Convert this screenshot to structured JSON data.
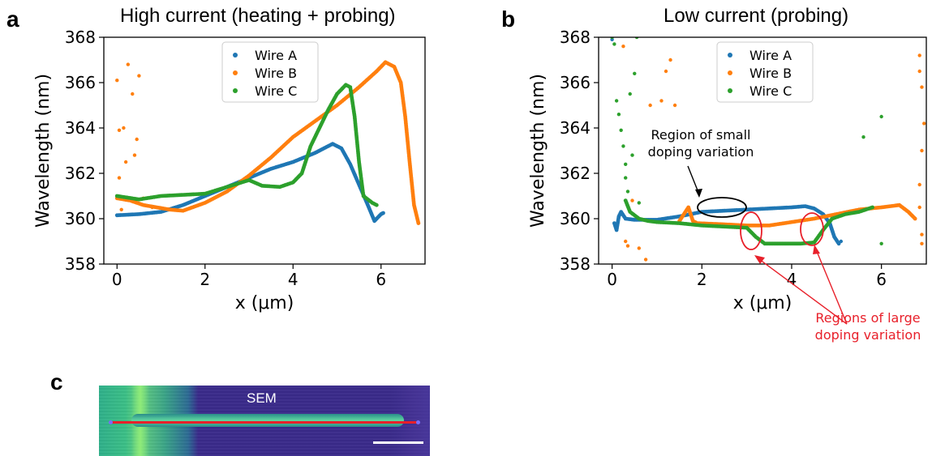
{
  "panels": {
    "a": {
      "letter": "a",
      "title": "High current (heating + probing)"
    },
    "b": {
      "letter": "b",
      "title": "Low current (probing)"
    },
    "c": {
      "letter": "c",
      "sem_label": "SEM"
    }
  },
  "annotations": {
    "small_doping": "Region of small\ndoping variation",
    "large_doping": "Regions of large\ndoping variation"
  },
  "colors": {
    "wire_a": "#1f77b4",
    "wire_b": "#ff7f0e",
    "wire_c": "#2ca02c",
    "annotation_red": "#e8202a"
  },
  "chart_data": [
    {
      "type": "scatter",
      "panel": "a",
      "title": "High current (heating + probing)",
      "xlabel": "x (μm)",
      "ylabel": "Wavelength (nm)",
      "xlim": [
        -0.3,
        7.0
      ],
      "ylim": [
        358,
        368
      ],
      "xticks": [
        0,
        2,
        4,
        6
      ],
      "yticks": [
        358,
        360,
        362,
        364,
        366,
        368
      ],
      "legend": "top-center",
      "grid": false,
      "series": [
        {
          "name": "Wire A",
          "color": "#1f77b4",
          "points": [
            [
              0.0,
              360.15
            ],
            [
              0.5,
              360.2
            ],
            [
              1.0,
              360.3
            ],
            [
              1.5,
              360.6
            ],
            [
              2.0,
              361.0
            ],
            [
              2.5,
              361.4
            ],
            [
              3.0,
              361.8
            ],
            [
              3.5,
              362.2
            ],
            [
              4.0,
              362.5
            ],
            [
              4.5,
              362.9
            ],
            [
              4.9,
              363.3
            ],
            [
              5.1,
              363.1
            ],
            [
              5.3,
              362.4
            ],
            [
              5.5,
              361.5
            ],
            [
              5.7,
              360.6
            ],
            [
              5.85,
              359.9
            ],
            [
              6.0,
              360.2
            ],
            [
              6.05,
              360.25
            ]
          ],
          "outliers": []
        },
        {
          "name": "Wire B",
          "color": "#ff7f0e",
          "points": [
            [
              0.0,
              360.9
            ],
            [
              0.3,
              360.8
            ],
            [
              0.6,
              360.6
            ],
            [
              0.9,
              360.5
            ],
            [
              1.2,
              360.4
            ],
            [
              1.5,
              360.35
            ],
            [
              2.0,
              360.7
            ],
            [
              2.5,
              361.2
            ],
            [
              3.0,
              361.9
            ],
            [
              3.5,
              362.7
            ],
            [
              4.0,
              363.6
            ],
            [
              4.5,
              364.3
            ],
            [
              5.0,
              365.0
            ],
            [
              5.5,
              365.8
            ],
            [
              5.9,
              366.5
            ],
            [
              6.1,
              366.9
            ],
            [
              6.3,
              366.7
            ],
            [
              6.45,
              366.0
            ],
            [
              6.55,
              364.5
            ],
            [
              6.65,
              362.5
            ],
            [
              6.75,
              360.6
            ],
            [
              6.85,
              359.8
            ]
          ],
          "outliers": [
            [
              0.0,
              366.1
            ],
            [
              0.05,
              363.9
            ],
            [
              0.05,
              361.8
            ],
            [
              0.1,
              360.4
            ],
            [
              0.15,
              364.0
            ],
            [
              0.2,
              362.5
            ],
            [
              0.25,
              366.8
            ],
            [
              0.3,
              360.9
            ],
            [
              0.35,
              365.5
            ],
            [
              0.4,
              362.8
            ],
            [
              0.45,
              363.5
            ],
            [
              0.5,
              366.3
            ],
            [
              0.6,
              360.9
            ],
            [
              0.8,
              360.5
            ]
          ]
        },
        {
          "name": "Wire C",
          "color": "#2ca02c",
          "points": [
            [
              0.0,
              361.0
            ],
            [
              0.5,
              360.85
            ],
            [
              1.0,
              361.0
            ],
            [
              1.5,
              361.05
            ],
            [
              2.0,
              361.1
            ],
            [
              2.5,
              361.4
            ],
            [
              3.0,
              361.7
            ],
            [
              3.3,
              361.45
            ],
            [
              3.7,
              361.4
            ],
            [
              4.0,
              361.6
            ],
            [
              4.2,
              362.0
            ],
            [
              4.4,
              363.2
            ],
            [
              4.6,
              364.0
            ],
            [
              4.8,
              364.8
            ],
            [
              5.0,
              365.5
            ],
            [
              5.2,
              365.9
            ],
            [
              5.3,
              365.8
            ],
            [
              5.4,
              364.5
            ],
            [
              5.5,
              362.5
            ],
            [
              5.6,
              361.0
            ],
            [
              5.8,
              360.7
            ],
            [
              5.9,
              360.6
            ]
          ],
          "outliers": []
        }
      ]
    },
    {
      "type": "scatter",
      "panel": "b",
      "title": "Low current (probing)",
      "xlabel": "x (μm)",
      "ylabel": "Wavelength (nm)",
      "xlim": [
        -0.3,
        7.0
      ],
      "ylim": [
        358,
        368
      ],
      "xticks": [
        0,
        2,
        4,
        6
      ],
      "yticks": [
        358,
        360,
        362,
        364,
        366,
        368
      ],
      "legend": "top-center",
      "grid": false,
      "series": [
        {
          "name": "Wire A",
          "color": "#1f77b4",
          "points": [
            [
              0.05,
              359.8
            ],
            [
              0.1,
              359.5
            ],
            [
              0.15,
              360.1
            ],
            [
              0.2,
              360.3
            ],
            [
              0.3,
              360.0
            ],
            [
              0.5,
              359.95
            ],
            [
              1.0,
              359.95
            ],
            [
              1.5,
              360.1
            ],
            [
              2.0,
              360.3
            ],
            [
              2.5,
              360.35
            ],
            [
              3.0,
              360.4
            ],
            [
              3.5,
              360.45
            ],
            [
              4.0,
              360.5
            ],
            [
              4.3,
              360.55
            ],
            [
              4.5,
              360.45
            ],
            [
              4.7,
              360.2
            ],
            [
              4.85,
              359.8
            ],
            [
              4.95,
              359.2
            ],
            [
              5.05,
              358.9
            ]
          ],
          "outliers": [
            [
              0.0,
              367.9
            ],
            [
              5.1,
              359.0
            ]
          ]
        },
        {
          "name": "Wire B",
          "color": "#ff7f0e",
          "points": [
            [
              1.5,
              359.9
            ],
            [
              1.6,
              360.2
            ],
            [
              1.7,
              360.5
            ],
            [
              1.8,
              359.9
            ],
            [
              1.9,
              359.8
            ],
            [
              2.5,
              359.75
            ],
            [
              3.0,
              359.7
            ],
            [
              3.5,
              359.7
            ],
            [
              4.0,
              359.85
            ],
            [
              4.5,
              360.0
            ],
            [
              5.0,
              360.2
            ],
            [
              5.5,
              360.4
            ],
            [
              6.0,
              360.5
            ],
            [
              6.4,
              360.6
            ],
            [
              6.6,
              360.3
            ],
            [
              6.75,
              360.0
            ]
          ],
          "outliers": [
            [
              0.25,
              367.6
            ],
            [
              0.3,
              359.0
            ],
            [
              0.35,
              358.8
            ],
            [
              0.45,
              360.8
            ],
            [
              0.6,
              358.7
            ],
            [
              0.75,
              358.2
            ],
            [
              0.85,
              365.0
            ],
            [
              1.1,
              365.2
            ],
            [
              1.2,
              366.5
            ],
            [
              1.3,
              367.0
            ],
            [
              1.4,
              365.0
            ],
            [
              6.85,
              367.2
            ],
            [
              6.85,
              366.5
            ],
            [
              6.9,
              365.8
            ],
            [
              6.95,
              364.2
            ],
            [
              6.9,
              363.0
            ],
            [
              6.85,
              361.5
            ],
            [
              6.85,
              360.5
            ],
            [
              6.9,
              359.3
            ],
            [
              6.9,
              358.9
            ]
          ]
        },
        {
          "name": "Wire C",
          "color": "#2ca02c",
          "points": [
            [
              0.3,
              360.8
            ],
            [
              0.4,
              360.3
            ],
            [
              0.6,
              360.0
            ],
            [
              0.8,
              359.9
            ],
            [
              1.0,
              359.85
            ],
            [
              1.5,
              359.8
            ],
            [
              2.0,
              359.7
            ],
            [
              2.5,
              359.65
            ],
            [
              3.0,
              359.6
            ],
            [
              3.2,
              359.2
            ],
            [
              3.4,
              358.9
            ],
            [
              3.8,
              358.9
            ],
            [
              4.2,
              358.9
            ],
            [
              4.5,
              358.95
            ],
            [
              4.7,
              359.5
            ],
            [
              4.9,
              360.0
            ],
            [
              5.2,
              360.2
            ],
            [
              5.5,
              360.3
            ],
            [
              5.8,
              360.5
            ]
          ],
          "outliers": [
            [
              0.0,
              368.0
            ],
            [
              0.05,
              367.7
            ],
            [
              0.1,
              365.2
            ],
            [
              0.15,
              364.6
            ],
            [
              0.2,
              363.9
            ],
            [
              0.25,
              363.2
            ],
            [
              0.3,
              362.4
            ],
            [
              0.3,
              361.8
            ],
            [
              0.35,
              361.2
            ],
            [
              0.4,
              365.5
            ],
            [
              0.45,
              362.8
            ],
            [
              0.5,
              366.4
            ],
            [
              0.55,
              368.0
            ],
            [
              0.6,
              360.7
            ],
            [
              5.6,
              363.6
            ],
            [
              6.0,
              364.5
            ],
            [
              6.0,
              358.9
            ]
          ]
        }
      ]
    }
  ]
}
